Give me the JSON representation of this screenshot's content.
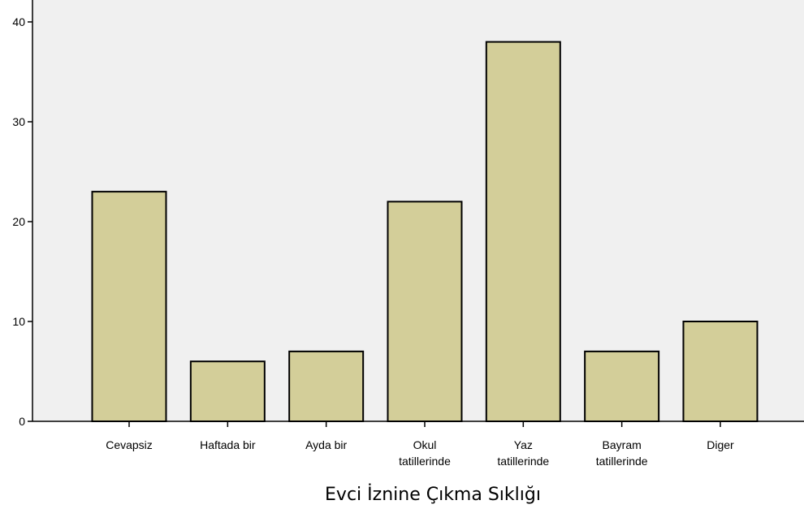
{
  "chart_data": {
    "type": "bar",
    "categories": [
      [
        "Cevapsiz"
      ],
      [
        "Haftada bir"
      ],
      [
        "Ayda bir"
      ],
      [
        "Okul",
        "tatillerinde"
      ],
      [
        "Yaz",
        "tatillerinde"
      ],
      [
        "Bayram",
        "tatillerinde"
      ],
      [
        "Diger"
      ]
    ],
    "values": [
      23,
      6,
      7,
      22,
      38,
      7,
      10
    ],
    "xlabel": "Evci İznine Çıkma Sıklığı",
    "ylabel": "",
    "ylim": [
      0,
      40
    ],
    "yticks": [
      0,
      10,
      20,
      30,
      40
    ],
    "grid": false,
    "colors": {
      "bar_fill": "#d3ce99",
      "bar_stroke": "#000000",
      "plot_background": "#f0f0f0"
    }
  }
}
